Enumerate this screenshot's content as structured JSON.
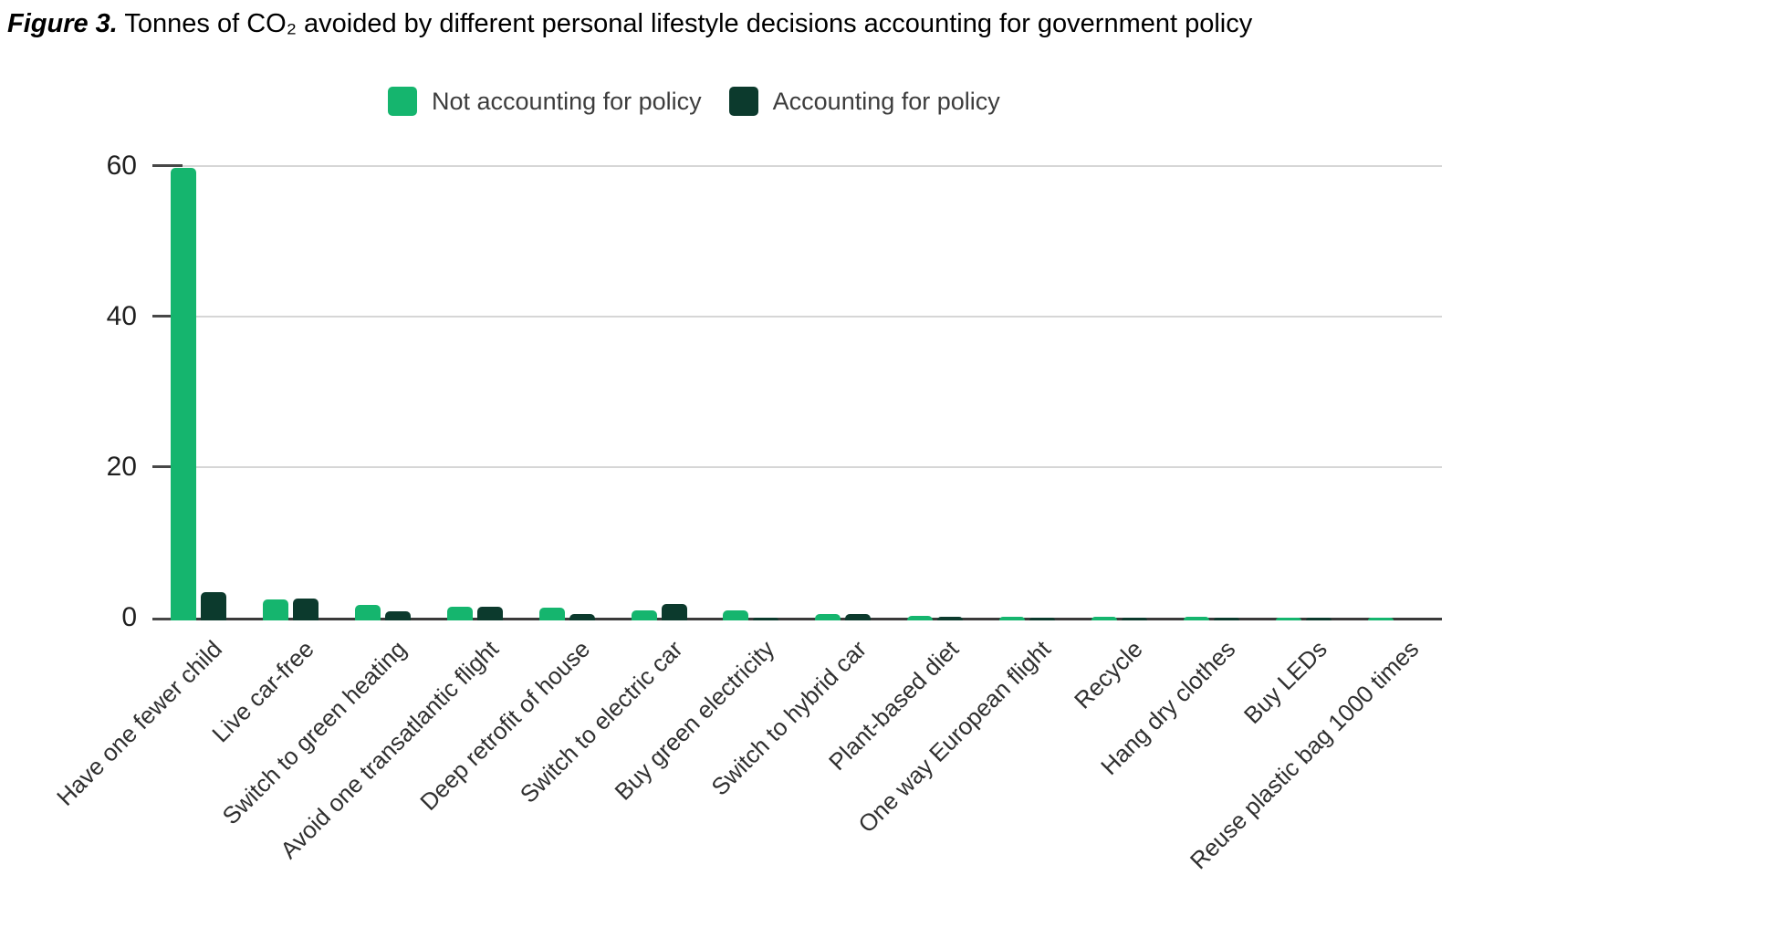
{
  "figure": {
    "title_prefix": "Figure 3.",
    "title_rest": " Tonnes of CO₂ avoided by different personal lifestyle decisions accounting for government policy"
  },
  "legend": {
    "items": [
      {
        "label": "Not accounting for policy",
        "color": "#15b56e"
      },
      {
        "label": "Accounting for policy",
        "color": "#0c3a2d"
      }
    ]
  },
  "colors": {
    "not_accounting": "#15b56e",
    "accounting": "#0c3a2d",
    "gridline": "#d6d6d6",
    "axis_line": "#3a3a3a"
  },
  "chart_data": {
    "type": "bar",
    "title": "Tonnes of CO₂ avoided by different personal lifestyle decisions accounting for government policy",
    "categories": [
      "Have one fewer child",
      "Live car-free",
      "Switch to green heating",
      "Avoid one transatlantic flight",
      "Deep retrofit of house",
      "Switch to electric car",
      "Buy green electricity",
      "Switch to hybrid car",
      "Plant-based diet",
      "One way European flight",
      "Recycle",
      "Hang dry clothes",
      "Buy LEDs",
      "Reuse plastic bag 1000 times"
    ],
    "series": [
      {
        "name": "Not accounting for policy",
        "color": "#15b56e",
        "values": [
          59.8,
          2.4,
          1.7,
          1.5,
          1.3,
          1.0,
          1.0,
          0.5,
          0.2,
          0.15,
          0.1,
          0.1,
          0.05,
          0.02
        ]
      },
      {
        "name": "Accounting for policy",
        "color": "#0c3a2d",
        "values": [
          3.4,
          2.5,
          0.8,
          1.4,
          0.5,
          1.8,
          0.05,
          0.45,
          0.1,
          0.05,
          0.03,
          0.02,
          0.01,
          0
        ]
      }
    ],
    "xlabel": "",
    "ylabel": "",
    "yticks": [
      0,
      20,
      40,
      60
    ],
    "ylim": [
      0,
      60
    ],
    "grid": true,
    "legend_position": "top"
  }
}
